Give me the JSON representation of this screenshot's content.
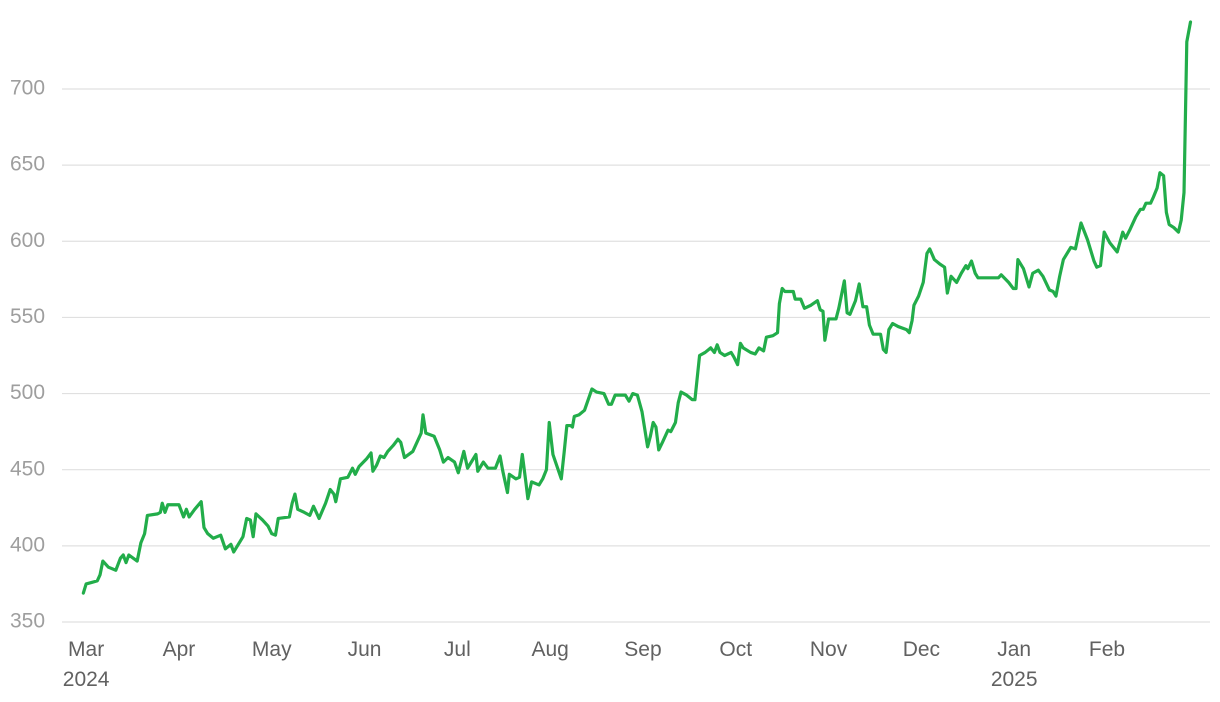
{
  "chart_data": {
    "type": "line",
    "x": [
      -0.03,
      0,
      0.06,
      0.12,
      0.15,
      0.18,
      0.24,
      0.32,
      0.37,
      0.4,
      0.43,
      0.46,
      0.55,
      0.59,
      0.63,
      0.66,
      0.77,
      0.8,
      0.82,
      0.85,
      0.88,
      1.0,
      1.05,
      1.08,
      1.11,
      1.17,
      1.24,
      1.27,
      1.31,
      1.37,
      1.45,
      1.5,
      1.56,
      1.59,
      1.66,
      1.69,
      1.73,
      1.77,
      1.8,
      1.83,
      1.9,
      1.96,
      2.0,
      2.04,
      2.07,
      2.19,
      2.22,
      2.25,
      2.28,
      2.35,
      2.41,
      2.45,
      2.51,
      2.58,
      2.63,
      2.67,
      2.69,
      2.74,
      2.82,
      2.87,
      2.9,
      2.94,
      3.02,
      3.07,
      3.09,
      3.13,
      3.17,
      3.21,
      3.25,
      3.31,
      3.36,
      3.39,
      3.43,
      3.52,
      3.58,
      3.61,
      3.63,
      3.66,
      3.75,
      3.81,
      3.85,
      3.9,
      3.97,
      4.01,
      4.04,
      4.07,
      4.11,
      4.14,
      4.2,
      4.22,
      4.28,
      4.33,
      4.41,
      4.46,
      4.49,
      4.54,
      4.56,
      4.63,
      4.67,
      4.7,
      4.74,
      4.76,
      4.8,
      4.88,
      4.92,
      4.96,
      4.99,
      5.03,
      5.12,
      5.15,
      5.18,
      5.22,
      5.24,
      5.26,
      5.31,
      5.37,
      5.45,
      5.5,
      5.58,
      5.63,
      5.66,
      5.7,
      5.81,
      5.85,
      5.89,
      5.94,
      5.99,
      6.05,
      6.08,
      6.11,
      6.14,
      6.17,
      6.21,
      6.27,
      6.3,
      6.35,
      6.38,
      6.41,
      6.47,
      6.53,
      6.56,
      6.61,
      6.67,
      6.73,
      6.77,
      6.8,
      6.83,
      6.88,
      6.95,
      6.98,
      7.02,
      7.05,
      7.08,
      7.16,
      7.21,
      7.25,
      7.3,
      7.33,
      7.4,
      7.45,
      7.47,
      7.5,
      7.53,
      7.62,
      7.64,
      7.7,
      7.74,
      7.81,
      7.88,
      7.91,
      7.94,
      7.96,
      8.0,
      8.08,
      8.11,
      8.17,
      8.2,
      8.23,
      8.29,
      8.33,
      8.37,
      8.41,
      8.44,
      8.48,
      8.56,
      8.59,
      8.62,
      8.65,
      8.69,
      8.75,
      8.84,
      8.87,
      8.9,
      8.92,
      8.97,
      9.02,
      9.06,
      9.09,
      9.14,
      9.2,
      9.25,
      9.28,
      9.32,
      9.38,
      9.43,
      9.48,
      9.5,
      9.54,
      9.58,
      9.61,
      9.83,
      9.86,
      9.94,
      9.99,
      10.02,
      10.04,
      10.1,
      10.16,
      10.2,
      10.26,
      10.31,
      10.38,
      10.42,
      10.45,
      10.49,
      10.53,
      10.61,
      10.66,
      10.72,
      10.79,
      10.86,
      10.89,
      10.93,
      10.97,
      11.03,
      11.11,
      11.17,
      11.2,
      11.25,
      11.31,
      11.36,
      11.39,
      11.42,
      11.47,
      11.5,
      11.54,
      11.57,
      11.61,
      11.64,
      11.67,
      11.72,
      11.77,
      11.8,
      11.83,
      11.86,
      11.9
    ],
    "values": [
      369,
      375,
      376,
      377,
      381,
      390,
      386,
      384,
      392,
      394,
      389,
      394,
      390,
      402,
      408,
      420,
      421,
      422,
      428,
      422,
      427,
      427,
      419,
      424,
      419,
      424,
      429,
      412,
      408,
      405,
      407,
      398,
      401,
      396,
      403,
      406,
      418,
      417,
      406,
      421,
      417,
      413,
      408,
      407,
      418,
      419,
      428,
      434,
      424,
      422,
      420,
      426,
      418,
      428,
      437,
      434,
      429,
      444,
      445,
      451,
      447,
      452,
      457,
      461,
      449,
      453,
      459,
      458,
      462,
      466,
      470,
      468,
      458,
      462,
      470,
      474,
      486,
      474,
      472,
      463,
      455,
      458,
      455,
      448,
      455,
      462,
      451,
      454,
      460,
      449,
      455,
      451,
      451,
      459,
      449,
      435,
      447,
      444,
      445,
      460,
      441,
      431,
      442,
      440,
      444,
      450,
      481,
      460,
      444,
      461,
      479,
      479,
      478,
      485,
      486,
      489,
      503,
      501,
      500,
      493,
      493,
      499,
      499,
      495,
      500,
      499,
      488,
      465,
      472,
      481,
      478,
      463,
      468,
      476,
      475,
      481,
      494,
      501,
      499,
      496,
      496,
      525,
      527,
      530,
      527,
      532,
      527,
      525,
      527,
      524,
      519,
      533,
      530,
      527,
      526,
      530,
      528,
      537,
      538,
      540,
      559,
      569,
      567,
      567,
      562,
      562,
      556,
      558,
      561,
      555,
      554,
      535,
      549,
      549,
      556,
      574,
      553,
      552,
      561,
      572,
      557,
      557,
      545,
      539,
      539,
      529,
      527,
      542,
      546,
      544,
      542,
      540,
      548,
      558,
      564,
      573,
      592,
      595,
      588,
      585,
      583,
      566,
      577,
      573,
      579,
      584,
      582,
      587,
      579,
      576,
      576,
      578,
      573,
      569,
      569,
      588,
      582,
      570,
      579,
      581,
      577,
      568,
      567,
      564,
      577,
      588,
      596,
      595,
      612,
      601,
      587,
      583,
      584,
      606,
      599,
      593,
      606,
      602,
      608,
      616,
      621,
      621,
      625,
      625,
      629,
      635,
      645,
      643,
      619,
      611,
      609,
      606,
      614,
      632,
      731,
      744
    ],
    "color": "#22ad4a",
    "xlim": [
      -0.26,
      12.11
    ],
    "xticks": [
      {
        "value": 0,
        "label": "Mar 2024"
      },
      {
        "value": 1,
        "label": "Apr"
      },
      {
        "value": 2,
        "label": "May"
      },
      {
        "value": 3,
        "label": "Jun"
      },
      {
        "value": 4,
        "label": "Jul"
      },
      {
        "value": 5,
        "label": "Aug"
      },
      {
        "value": 6,
        "label": "Sep"
      },
      {
        "value": 7,
        "label": "Oct"
      },
      {
        "value": 8,
        "label": "Nov"
      },
      {
        "value": 9,
        "label": "Dec"
      },
      {
        "value": 10,
        "label": "Jan 2025"
      },
      {
        "value": 11,
        "label": "Feb"
      }
    ],
    "ylim": [
      350,
      752
    ],
    "yticks": [
      350,
      400,
      450,
      500,
      550,
      600,
      650,
      700
    ],
    "grid": true
  }
}
